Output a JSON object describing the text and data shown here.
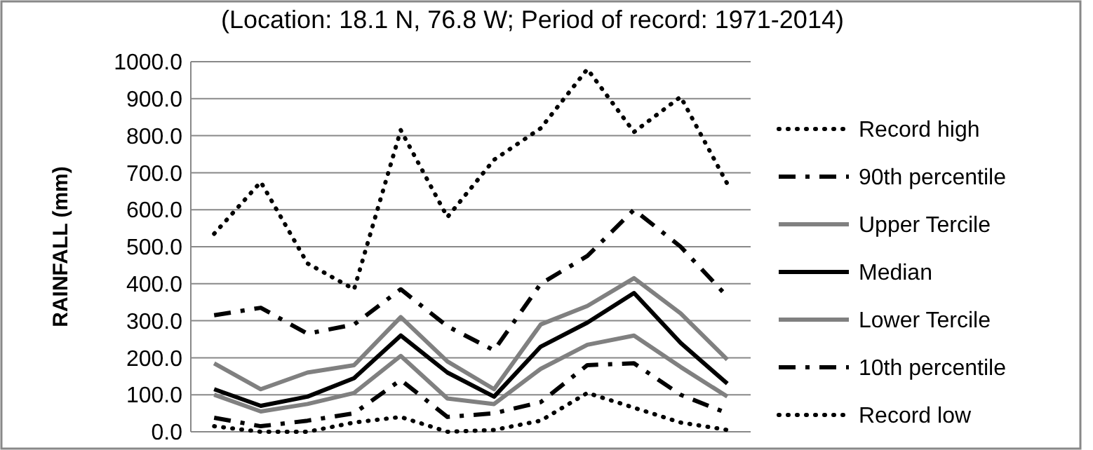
{
  "chart_data": {
    "type": "line",
    "subtitle": "(Location: 18.1 N, 76.8 W; Period of record: 1971-2014)",
    "ylabel": "RAINFALL (mm)",
    "categories": [
      null,
      null,
      null,
      null,
      null,
      null,
      null,
      null,
      null,
      null,
      null,
      null
    ],
    "ylim": [
      0,
      1000
    ],
    "yticks": [
      {
        "value": 0,
        "label": "0.0"
      },
      {
        "value": 100,
        "label": "100.0"
      },
      {
        "value": 200,
        "label": "200.0"
      },
      {
        "value": 300,
        "label": "300.0"
      },
      {
        "value": 400,
        "label": "400.0"
      },
      {
        "value": 500,
        "label": "500.0"
      },
      {
        "value": 600,
        "label": "600.0"
      },
      {
        "value": 700,
        "label": "700.0"
      },
      {
        "value": 800,
        "label": "800.0"
      },
      {
        "value": 900,
        "label": "900.0"
      },
      {
        "value": 1000,
        "label": "1000.0"
      }
    ],
    "grid": "y",
    "legend": "right",
    "series": [
      {
        "name": "Record high",
        "color": "#000000",
        "line_style": "dotted",
        "values": [
          535,
          675,
          455,
          385,
          815,
          580,
          735,
          820,
          980,
          810,
          905,
          670
        ]
      },
      {
        "name": "90th percentile",
        "color": "#000000",
        "line_style": "dashed",
        "values": [
          315,
          335,
          265,
          290,
          385,
          285,
          220,
          400,
          475,
          600,
          500,
          365
        ]
      },
      {
        "name": "Upper Tercile",
        "color": "#808080",
        "line_style": "solid",
        "values": [
          185,
          115,
          160,
          180,
          310,
          190,
          115,
          290,
          340,
          415,
          320,
          195
        ]
      },
      {
        "name": "Median",
        "color": "#000000",
        "line_style": "solid",
        "values": [
          115,
          70,
          95,
          145,
          260,
          160,
          95,
          230,
          295,
          375,
          240,
          130
        ]
      },
      {
        "name": "Lower Tercile",
        "color": "#808080",
        "line_style": "solid",
        "values": [
          100,
          55,
          75,
          105,
          205,
          90,
          75,
          170,
          235,
          260,
          175,
          95
        ]
      },
      {
        "name": "10th percentile",
        "color": "#000000",
        "line_style": "dashed",
        "values": [
          38,
          15,
          30,
          50,
          140,
          40,
          50,
          80,
          180,
          185,
          100,
          50
        ]
      },
      {
        "name": "Record low",
        "color": "#000000",
        "line_style": "dotted",
        "values": [
          15,
          0,
          0,
          25,
          40,
          0,
          5,
          30,
          105,
          65,
          25,
          5
        ]
      }
    ]
  }
}
